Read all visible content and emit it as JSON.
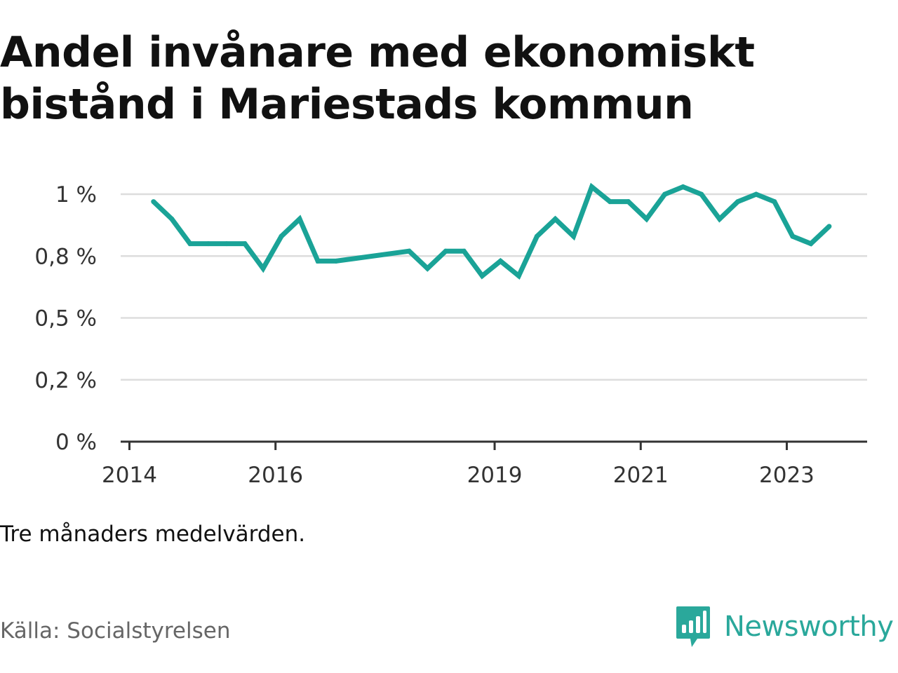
{
  "title": "Andel invånare med ekonomiskt bistånd i Mariestads kommun",
  "note": "Tre månaders medelvärden.",
  "source": "Källa: Socialstyrelsen",
  "brand": {
    "name": "Newsworthy",
    "icon": "newsworthy-logo-icon",
    "color": "#2aa89b"
  },
  "colors": {
    "line": "#1aa397",
    "grid": "#dddddd",
    "axis": "#333333"
  },
  "chart_data": {
    "type": "line",
    "title": "Andel invånare med ekonomiskt bistånd i Mariestads kommun",
    "xlabel": "",
    "ylabel": "",
    "ylim": [
      0,
      1.02
    ],
    "y_ticks": [
      {
        "value": 0,
        "label": "0 %"
      },
      {
        "value": 0.25,
        "label": "0,2 %"
      },
      {
        "value": 0.5,
        "label": "0,5 %"
      },
      {
        "value": 0.75,
        "label": "0,8 %"
      },
      {
        "value": 1.0,
        "label": "1 %"
      }
    ],
    "x_ticks": [
      {
        "value": 2014,
        "label": "2014"
      },
      {
        "value": 2016,
        "label": "2016"
      },
      {
        "value": 2019,
        "label": "2019"
      },
      {
        "value": 2021,
        "label": "2021"
      },
      {
        "value": 2023,
        "label": "2023"
      }
    ],
    "xlim": [
      2013.88,
      2024.1
    ],
    "grid": true,
    "legend": "none",
    "series": [
      {
        "x": [
          2014.33,
          2014.58,
          2014.83,
          2015.08,
          2015.33,
          2015.58,
          2015.83,
          2016.08,
          2016.33,
          2016.58,
          2016.83,
          2017.83,
          2018.08,
          2018.33,
          2018.58,
          2018.83,
          2019.08,
          2019.33,
          2019.58,
          2019.83,
          2020.08,
          2020.33,
          2020.58,
          2020.83,
          2021.08,
          2021.33,
          2021.58,
          2021.83,
          2022.08,
          2022.33,
          2022.58,
          2022.83,
          2023.08,
          2023.33,
          2023.58
        ],
        "y": [
          0.97,
          0.9,
          0.8,
          0.8,
          0.8,
          0.8,
          0.7,
          0.83,
          0.9,
          0.73,
          0.73,
          0.77,
          0.7,
          0.77,
          0.77,
          0.67,
          0.73,
          0.67,
          0.83,
          0.9,
          0.83,
          1.03,
          0.97,
          0.97,
          0.9,
          1.0,
          1.03,
          1.0,
          0.9,
          0.97,
          1.0,
          0.97,
          0.83,
          0.8,
          0.87
        ]
      }
    ]
  }
}
